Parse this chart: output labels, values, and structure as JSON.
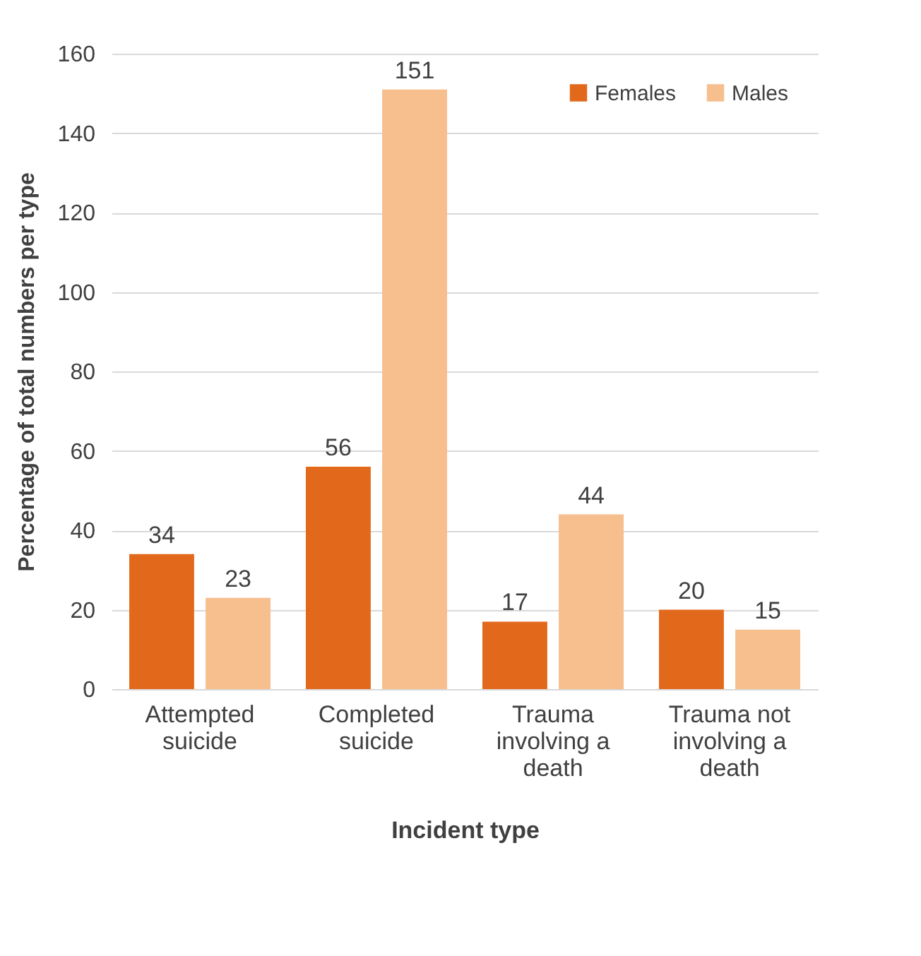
{
  "chart_data": {
    "type": "bar",
    "xlabel": "Incident type",
    "ylabel": "Percentage of total numbers per type",
    "categories": [
      "Attempted suicide",
      "Completed suicide",
      "Trauma involving a death",
      "Trauma not involving a death"
    ],
    "series": [
      {
        "name": "Females",
        "color": "#e2691c",
        "values": [
          34,
          56,
          17,
          20
        ]
      },
      {
        "name": "Males",
        "color": "#f7be8e",
        "values": [
          23,
          151,
          44,
          15
        ]
      }
    ],
    "ylim": [
      0,
      160
    ],
    "yticks": [
      0,
      20,
      40,
      60,
      80,
      100,
      120,
      140,
      160
    ],
    "grid": "y",
    "legend": "top right",
    "data_labels": true
  }
}
